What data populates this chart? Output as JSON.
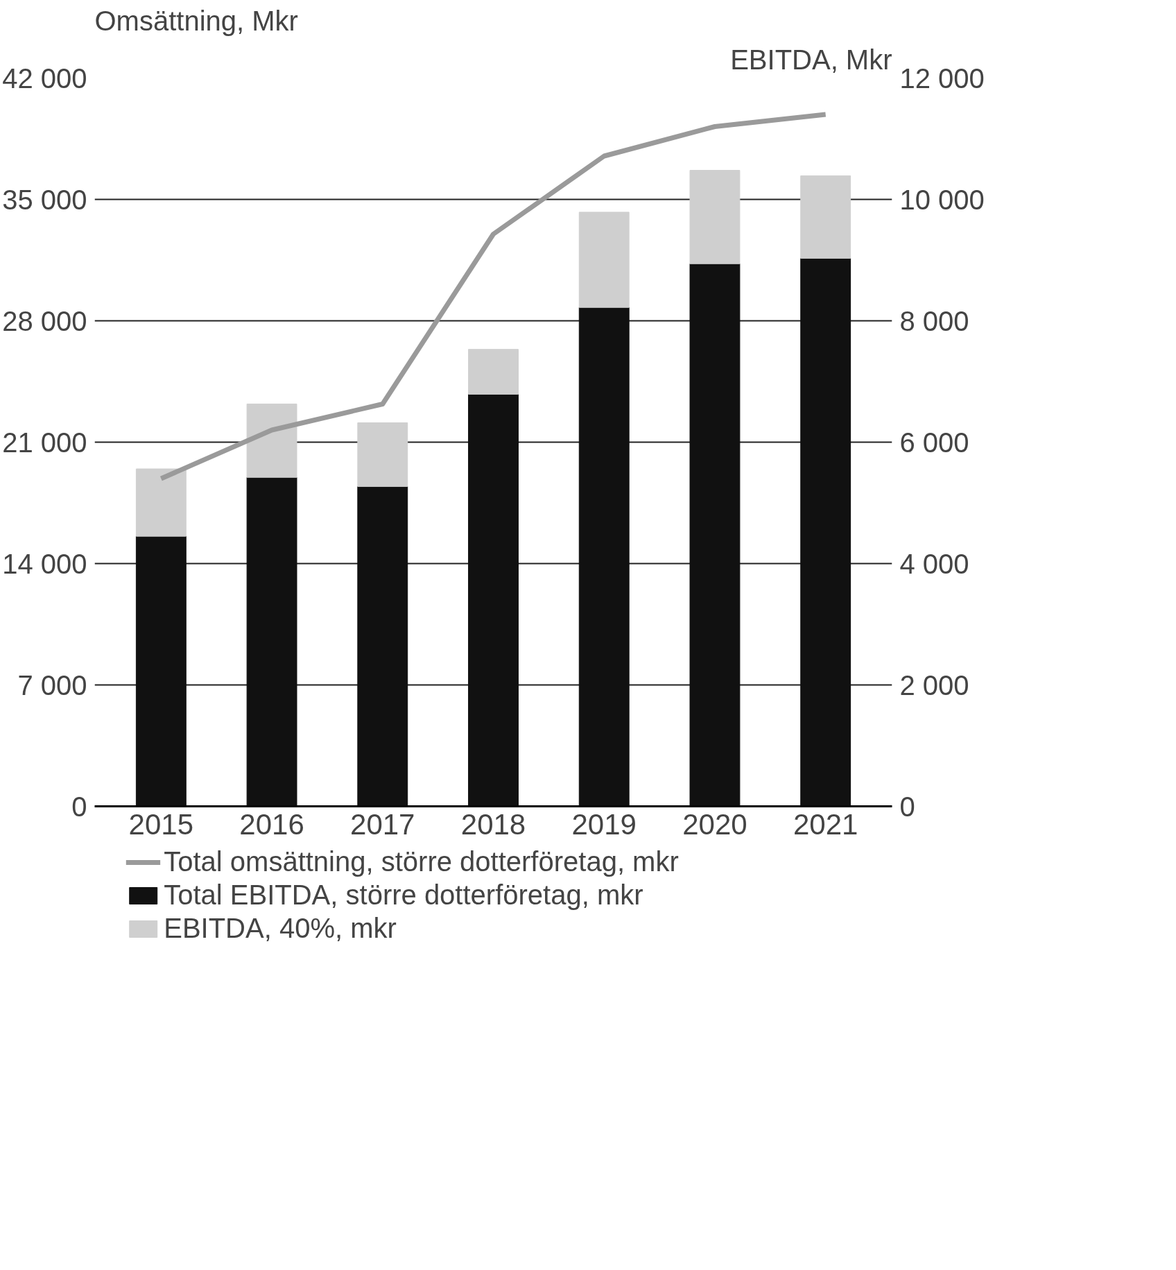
{
  "chart_data": {
    "type": "bar",
    "stacked": true,
    "ylabel": "Omsättning, Mkr",
    "y2label": "EBITDA, Mkr",
    "categories": [
      "2015",
      "2016",
      "2017",
      "2018",
      "2019",
      "2020",
      "2021"
    ],
    "series": [
      {
        "name": "Total omsättning, större dotterföretag, mkr",
        "type": "line",
        "color": "#9a9a9a",
        "values": [
          18900,
          21700,
          23200,
          33000,
          37500,
          39200,
          39900
        ]
      },
      {
        "name": "Total EBITDA, större dotterföretag, mkr",
        "axis": "y2",
        "color": "#111111",
        "values": [
          4450,
          5420,
          5270,
          6790,
          8220,
          8940,
          9030
        ]
      },
      {
        "name": "EBITDA, 40%, mkr",
        "axis": "y2",
        "color": "#cfcfcf",
        "values": [
          1110,
          1210,
          1050,
          740,
          1570,
          1540,
          1360
        ]
      }
    ],
    "ylim": [
      0,
      42000
    ],
    "yticks": [
      0,
      {
        "value": 7000,
        "label": "7 000"
      },
      {
        "value": 14000,
        "label": "14 000"
      },
      {
        "value": 21000,
        "label": "21 000"
      },
      {
        "value": 28000,
        "label": "28 000"
      },
      {
        "value": 35000,
        "label": "35 000"
      },
      {
        "value": 42000,
        "label": "42 000"
      }
    ],
    "y2lim": [
      0,
      12000
    ],
    "y2ticks": [
      0,
      {
        "value": 2000,
        "label": "2 000"
      },
      {
        "value": 4000,
        "label": "4 000"
      },
      {
        "value": 6000,
        "label": "6 000"
      },
      {
        "value": 8000,
        "label": "8 000"
      },
      {
        "value": 10000,
        "label": "10 000"
      },
      {
        "value": 12000,
        "label": "12 000"
      }
    ],
    "grid": "y",
    "legend": "bottom"
  }
}
